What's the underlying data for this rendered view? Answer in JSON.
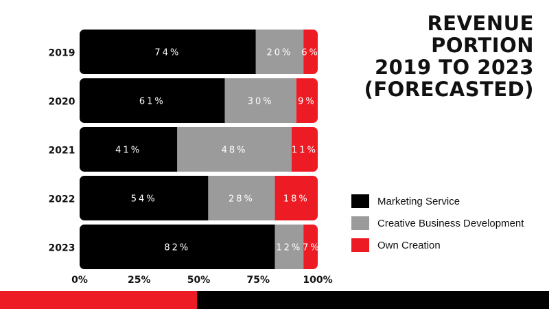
{
  "chart_data": {
    "type": "bar",
    "orientation": "horizontal",
    "stacked": true,
    "title_lines": [
      "REVENUE PORTION",
      "2019 TO 2023",
      "(FORECASTED)"
    ],
    "categories": [
      "2019",
      "2020",
      "2021",
      "2022",
      "2023"
    ],
    "series": [
      {
        "name": "Marketing Service",
        "color": "#000000",
        "label_color": "#ffffff",
        "values": [
          74,
          61,
          41,
          54,
          82
        ],
        "labels": [
          "74%",
          "61%",
          "41%",
          "54%",
          "82%"
        ]
      },
      {
        "name": "Creative Business Development",
        "color": "#9B9B9B",
        "label_color": "#ffffff",
        "values": [
          20,
          30,
          48,
          28,
          12
        ],
        "labels": [
          "20%",
          "30%",
          "48%",
          "28%",
          "12%"
        ]
      },
      {
        "name": "Own Creation",
        "color": "#ED1C24",
        "label_color": "#ffffff",
        "values": [
          6,
          9,
          11,
          18,
          7
        ],
        "labels": [
          "6%",
          "9%",
          "11%",
          "18%",
          "7%"
        ]
      }
    ],
    "xticks": [
      "0%",
      "25%",
      "50%",
      "75%",
      "100%"
    ],
    "xlim": [
      0,
      100
    ],
    "legend_position": "right",
    "grid": false
  },
  "footer": {
    "colors": [
      "#ED1C24",
      "#000000"
    ]
  }
}
